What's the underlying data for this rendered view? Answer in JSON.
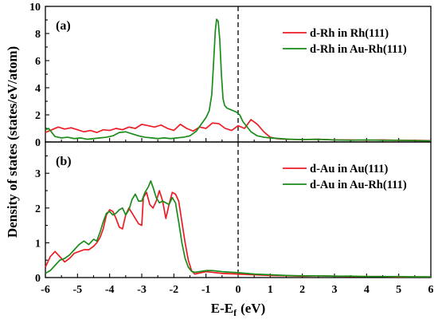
{
  "chart_data": {
    "type": "line",
    "grid": false,
    "x_axis": {
      "label": "E-E",
      "label_sub": "f",
      "label_unit": "(eV)",
      "range": [
        -6,
        6
      ],
      "ticks": [
        -6,
        -5,
        -4,
        -3,
        -2,
        -1,
        0,
        1,
        2,
        3,
        4,
        5,
        6
      ]
    },
    "y_axis": {
      "label": "Density of states (states/eV/atom)"
    },
    "reference_line": {
      "x": 0,
      "dashed": true
    },
    "panels": [
      {
        "label": "(a)",
        "ylim": [
          0,
          10
        ],
        "yticks": [
          0,
          2,
          4,
          6,
          8,
          10
        ],
        "legend": "top-right",
        "series": [
          {
            "name": "d-Rh in Rh(111)",
            "color": "#ec1c24",
            "x": [
              -6.0,
              -5.8,
              -5.6,
              -5.4,
              -5.2,
              -5.0,
              -4.8,
              -4.6,
              -4.4,
              -4.2,
              -4.0,
              -3.8,
              -3.6,
              -3.4,
              -3.2,
              -3.0,
              -2.8,
              -2.6,
              -2.4,
              -2.2,
              -2.0,
              -1.8,
              -1.6,
              -1.4,
              -1.2,
              -1.0,
              -0.8,
              -0.6,
              -0.4,
              -0.2,
              0.0,
              0.2,
              0.4,
              0.6,
              0.8,
              1.0,
              1.2,
              1.5,
              2.0,
              2.5,
              3.0,
              3.5,
              4.0,
              4.5,
              5.0,
              5.5,
              6.0
            ],
            "y": [
              0.7,
              0.9,
              1.1,
              0.95,
              1.05,
              0.9,
              0.75,
              0.85,
              0.7,
              0.9,
              0.85,
              1.0,
              0.9,
              1.1,
              1.0,
              1.3,
              1.2,
              1.1,
              1.25,
              1.0,
              0.85,
              1.3,
              1.0,
              0.8,
              1.1,
              1.0,
              1.4,
              1.35,
              1.0,
              0.85,
              1.2,
              1.0,
              1.65,
              1.3,
              0.75,
              0.35,
              0.25,
              0.2,
              0.18,
              0.2,
              0.15,
              0.15,
              0.13,
              0.15,
              0.12,
              0.12,
              0.1
            ]
          },
          {
            "name": "d-Rh in Au-Rh(111)",
            "color": "#1a8c1a",
            "x": [
              -6.0,
              -5.9,
              -5.7,
              -5.5,
              -5.3,
              -5.1,
              -4.9,
              -4.7,
              -4.5,
              -4.3,
              -4.1,
              -3.9,
              -3.7,
              -3.5,
              -3.3,
              -3.1,
              -2.9,
              -2.7,
              -2.5,
              -2.3,
              -2.1,
              -1.9,
              -1.7,
              -1.5,
              -1.3,
              -1.15,
              -1.0,
              -0.9,
              -0.82,
              -0.76,
              -0.71,
              -0.67,
              -0.62,
              -0.57,
              -0.52,
              -0.47,
              -0.42,
              -0.35,
              -0.25,
              -0.15,
              -0.05,
              0.05,
              0.15,
              0.25,
              0.4,
              0.6,
              0.8,
              1.0,
              1.3,
              1.6,
              2.0,
              2.5,
              3.0,
              3.5,
              4.0,
              4.5,
              5.0,
              5.5,
              6.0
            ],
            "y": [
              0.9,
              1.0,
              0.4,
              0.3,
              0.35,
              0.25,
              0.3,
              0.2,
              0.25,
              0.3,
              0.35,
              0.45,
              0.7,
              0.75,
              0.6,
              0.45,
              0.35,
              0.3,
              0.25,
              0.3,
              0.25,
              0.3,
              0.35,
              0.45,
              0.8,
              1.3,
              1.8,
              2.3,
              3.5,
              6.0,
              8.2,
              9.05,
              8.9,
              7.5,
              5.0,
              3.2,
              2.7,
              2.5,
              2.4,
              2.3,
              2.2,
              2.0,
              1.5,
              1.2,
              0.75,
              0.45,
              0.35,
              0.3,
              0.25,
              0.2,
              0.18,
              0.2,
              0.15,
              0.13,
              0.15,
              0.12,
              0.12,
              0.1,
              0.08
            ]
          }
        ]
      },
      {
        "label": "(b)",
        "ylim": [
          0,
          3.9
        ],
        "yticks": [
          0,
          1,
          2,
          3
        ],
        "legend": "top-right",
        "series": [
          {
            "name": "d-Au in Au(111)",
            "color": "#ec1c24",
            "x": [
              -6.0,
              -5.85,
              -5.7,
              -5.55,
              -5.4,
              -5.25,
              -5.1,
              -4.95,
              -4.8,
              -4.65,
              -4.5,
              -4.4,
              -4.3,
              -4.2,
              -4.1,
              -4.0,
              -3.9,
              -3.8,
              -3.7,
              -3.6,
              -3.5,
              -3.4,
              -3.3,
              -3.2,
              -3.1,
              -3.0,
              -2.95,
              -2.85,
              -2.75,
              -2.65,
              -2.55,
              -2.45,
              -2.35,
              -2.25,
              -2.15,
              -2.05,
              -1.95,
              -1.85,
              -1.75,
              -1.65,
              -1.55,
              -1.45,
              -1.35,
              -1.2,
              -1.0,
              -0.8,
              -0.5,
              0.0,
              0.5,
              1.0,
              1.5,
              2.0,
              2.5,
              3.0,
              3.5,
              4.0,
              4.5,
              5.0,
              5.5,
              6.0
            ],
            "y": [
              0.3,
              0.6,
              0.75,
              0.6,
              0.45,
              0.55,
              0.7,
              0.75,
              0.8,
              0.8,
              0.9,
              1.0,
              1.15,
              1.4,
              1.8,
              1.95,
              1.9,
              1.7,
              1.45,
              1.4,
              1.8,
              2.0,
              1.85,
              1.7,
              1.55,
              1.5,
              2.3,
              2.45,
              2.1,
              2.0,
              2.2,
              2.5,
              2.2,
              1.7,
              2.1,
              2.45,
              2.4,
              2.2,
              1.6,
              1.0,
              0.5,
              0.2,
              0.1,
              0.13,
              0.17,
              0.15,
              0.12,
              0.1,
              0.08,
              0.06,
              0.05,
              0.04,
              0.05,
              0.04,
              0.03,
              0.03,
              0.03,
              0.02,
              0.02,
              0.02
            ]
          },
          {
            "name": "d-Au in Au-Rh(111)",
            "color": "#1a8c1a",
            "x": [
              -6.0,
              -5.85,
              -5.7,
              -5.55,
              -5.4,
              -5.25,
              -5.1,
              -4.95,
              -4.8,
              -4.65,
              -4.5,
              -4.4,
              -4.3,
              -4.2,
              -4.1,
              -4.0,
              -3.9,
              -3.8,
              -3.7,
              -3.6,
              -3.5,
              -3.4,
              -3.3,
              -3.2,
              -3.1,
              -3.0,
              -2.9,
              -2.8,
              -2.72,
              -2.65,
              -2.55,
              -2.45,
              -2.35,
              -2.25,
              -2.15,
              -2.05,
              -1.95,
              -1.85,
              -1.75,
              -1.65,
              -1.55,
              -1.45,
              -1.35,
              -1.2,
              -1.0,
              -0.8,
              -0.5,
              0.0,
              0.5,
              1.0,
              1.5,
              2.0,
              2.5,
              3.0,
              3.5,
              4.0,
              4.5,
              5.0,
              5.5,
              6.0
            ],
            "y": [
              0.12,
              0.2,
              0.35,
              0.5,
              0.55,
              0.65,
              0.8,
              0.95,
              1.05,
              0.95,
              1.1,
              1.05,
              1.3,
              1.6,
              1.85,
              1.9,
              1.8,
              1.85,
              1.95,
              2.0,
              1.8,
              1.95,
              2.25,
              2.4,
              2.2,
              2.2,
              2.45,
              2.6,
              2.78,
              2.6,
              2.3,
              2.15,
              2.2,
              2.15,
              2.1,
              2.3,
              2.15,
              1.6,
              1.0,
              0.55,
              0.3,
              0.18,
              0.15,
              0.17,
              0.2,
              0.2,
              0.17,
              0.14,
              0.1,
              0.08,
              0.06,
              0.05,
              0.05,
              0.04,
              0.04,
              0.03,
              0.03,
              0.03,
              0.02,
              0.02
            ]
          }
        ]
      }
    ]
  }
}
